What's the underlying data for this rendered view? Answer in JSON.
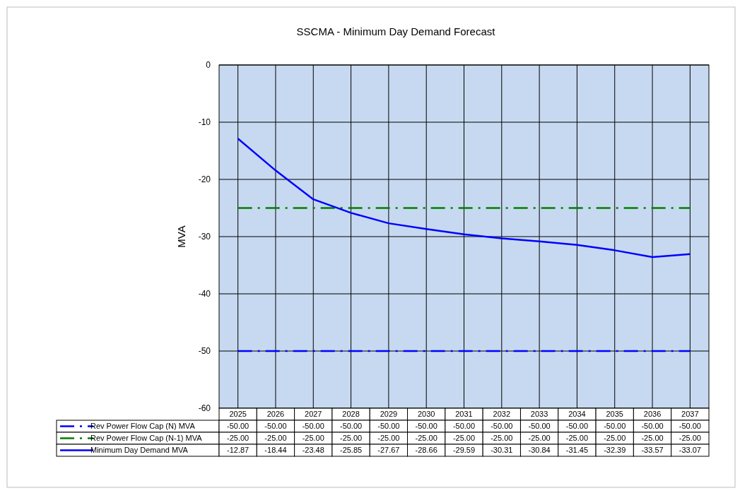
{
  "chart_data": {
    "type": "line",
    "title": "SSCMA - Minimum Day Demand Forecast",
    "ylabel": "MVA",
    "categories": [
      "2025",
      "2026",
      "2027",
      "2028",
      "2029",
      "2030",
      "2031",
      "2032",
      "2033",
      "2034",
      "2035",
      "2036",
      "2037"
    ],
    "series": [
      {
        "name": "Rev Power Flow Cap (N) MVA",
        "color": "#0000ff",
        "line_style": "dashdot",
        "values": [
          -50,
          -50,
          -50,
          -50,
          -50,
          -50,
          -50,
          -50,
          -50,
          -50,
          -50,
          -50,
          -50
        ],
        "value_labels": [
          "-50.00",
          "-50.00",
          "-50.00",
          "-50.00",
          "-50.00",
          "-50.00",
          "-50.00",
          "-50.00",
          "-50.00",
          "-50.00",
          "-50.00",
          "-50.00",
          "-50.00"
        ]
      },
      {
        "name": "Rev Power Flow Cap (N-1) MVA",
        "color": "#008000",
        "line_style": "dashdot",
        "values": [
          -25,
          -25,
          -25,
          -25,
          -25,
          -25,
          -25,
          -25,
          -25,
          -25,
          -25,
          -25,
          -25
        ],
        "value_labels": [
          "-25.00",
          "-25.00",
          "-25.00",
          "-25.00",
          "-25.00",
          "-25.00",
          "-25.00",
          "-25.00",
          "-25.00",
          "-25.00",
          "-25.00",
          "-25.00",
          "-25.00"
        ]
      },
      {
        "name": "Minimum Day Demand MVA",
        "color": "#0000ff",
        "line_style": "solid",
        "values": [
          -12.87,
          -18.44,
          -23.48,
          -25.85,
          -27.67,
          -28.66,
          -29.59,
          -30.31,
          -30.84,
          -31.45,
          -32.39,
          -33.57,
          -33.07
        ],
        "value_labels": [
          "-12.87",
          "-18.44",
          "-23.48",
          "-25.85",
          "-27.67",
          "-28.66",
          "-29.59",
          "-30.31",
          "-30.84",
          "-31.45",
          "-32.39",
          "-33.57",
          "-33.07"
        ]
      }
    ],
    "ylim": [
      -60,
      0
    ],
    "yticks": [
      -60,
      -50,
      -40,
      -30,
      -20,
      -10,
      0
    ],
    "grid": true,
    "legend": "bottom"
  }
}
